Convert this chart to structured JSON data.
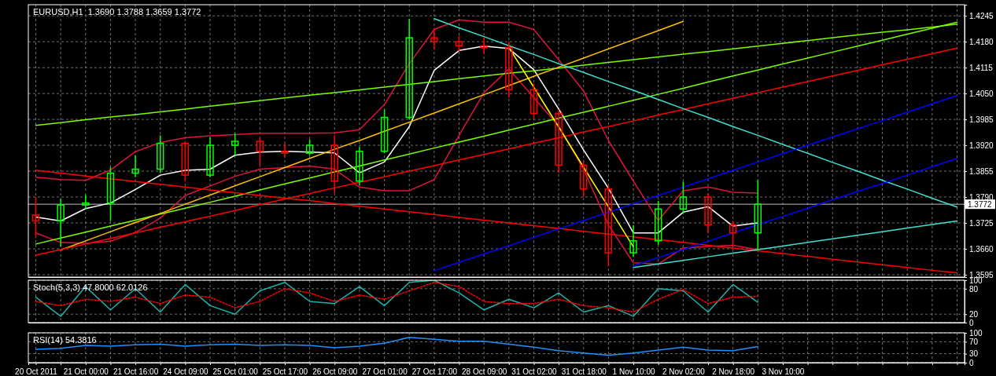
{
  "chart_data": [
    {
      "type": "candlestick",
      "title": "EURUSD,H1  1.3690 1.3788 1.3659 1.3772",
      "ylim": [
        1.3589,
        1.4273
      ],
      "yticks": [
        1.3595,
        {
          "value": 1.366,
          "label": "1.3660"
        },
        1.3725,
        {
          "value": 1.379,
          "label": "1.3790"
        },
        1.3855,
        {
          "value": 1.392,
          "label": "1.3920"
        },
        1.3985,
        {
          "value": 1.405,
          "label": "1.4050"
        },
        1.4115,
        {
          "value": 1.418,
          "label": "1.4180"
        },
        1.4245
      ],
      "grid": true,
      "tick_labels": "y",
      "categories": [
        null,
        null,
        null,
        null,
        null,
        null,
        null,
        null,
        null,
        null,
        null,
        null,
        null,
        null,
        null,
        null,
        null,
        null,
        null,
        null,
        null,
        null,
        null,
        null,
        null,
        null,
        null,
        null,
        null,
        null,
        null,
        null,
        null,
        null,
        null,
        null,
        null,
        null
      ],
      "ohlc": [
        [
          1.3745,
          1.379,
          1.369,
          1.373
        ],
        [
          1.373,
          1.3785,
          1.3666,
          1.377
        ],
        [
          1.377,
          1.3795,
          1.376,
          1.3775
        ],
        [
          1.3775,
          1.3865,
          1.373,
          1.385
        ],
        [
          1.385,
          1.3895,
          1.384,
          1.386
        ],
        [
          1.386,
          1.3945,
          1.385,
          1.3925
        ],
        [
          1.3925,
          1.393,
          1.383,
          1.3845
        ],
        [
          1.3845,
          1.394,
          1.384,
          1.392
        ],
        [
          1.392,
          1.395,
          1.3895,
          1.393
        ],
        [
          1.393,
          1.394,
          1.387,
          1.3905
        ],
        [
          1.3905,
          1.3925,
          1.389,
          1.39
        ],
        [
          1.39,
          1.3935,
          1.3895,
          1.392
        ],
        [
          1.392,
          1.3945,
          1.38,
          1.383
        ],
        [
          1.383,
          1.3915,
          1.382,
          1.3905
        ],
        [
          1.3905,
          1.401,
          1.39,
          1.399
        ],
        [
          1.399,
          1.4237,
          1.3985,
          1.419
        ],
        [
          1.419,
          1.4215,
          1.416,
          1.418
        ],
        [
          1.418,
          1.4195,
          1.4155,
          1.417
        ],
        [
          1.417,
          1.419,
          1.415,
          1.4165
        ],
        [
          1.4165,
          1.418,
          1.404,
          1.406
        ],
        [
          1.406,
          1.4075,
          1.3985,
          1.4
        ],
        [
          1.4,
          1.401,
          1.385,
          1.387
        ],
        [
          1.387,
          1.388,
          1.379,
          1.381
        ],
        [
          1.381,
          1.382,
          1.3616,
          1.365
        ],
        [
          1.365,
          1.372,
          1.364,
          1.368
        ],
        [
          1.368,
          1.378,
          1.367,
          1.376
        ],
        [
          1.376,
          1.3829,
          1.375,
          1.379
        ],
        [
          1.379,
          1.38,
          1.37,
          1.372
        ],
        [
          1.372,
          1.373,
          1.3665,
          1.37
        ],
        [
          1.37,
          1.3833,
          1.3659,
          1.3772
        ],
        null,
        null,
        null,
        null,
        null,
        null,
        null,
        null
      ],
      "colors": [
        "#ff0000",
        "#00ff00",
        "#00ff00",
        "#00ff00",
        "#00ff00",
        "#00ff00",
        "#ff0000",
        "#00ff00",
        "#00ff00",
        "#ff0000",
        "#ff0000",
        "#00ff00",
        "#ff0000",
        "#00ff00",
        "#00ff00",
        "#00ff00",
        "#ff0000",
        "#ff0000",
        "#ff0000",
        "#ff0000",
        "#ff0000",
        "#ff0000",
        "#ff0000",
        "#ff0000",
        "#00ff00",
        "#00ff00",
        "#00ff00",
        "#ff0000",
        "#ff0000",
        "#00ff00",
        null,
        null,
        null,
        null,
        null,
        null,
        null,
        null
      ],
      "ref_lines": [
        {
          "axis": "y",
          "value": 1.3772,
          "label": "1.3772",
          "color": "#c0c0c0"
        }
      ],
      "series": [
        {
          "type": "line",
          "color": "#dc143c",
          "values": [
            1.384,
            1.3834,
            1.3832,
            1.3858,
            1.3904,
            1.3927,
            1.3939,
            1.3944,
            1.3947,
            1.395,
            1.395,
            1.395,
            1.3951,
            1.3959,
            1.4022,
            1.4125,
            1.4211,
            1.4235,
            1.4229,
            1.4229,
            1.4211,
            1.4135,
            1.4056,
            1.3932,
            1.383,
            1.3731,
            1.3806,
            1.3815,
            1.3802,
            1.38,
            null,
            null,
            null,
            null,
            null,
            null,
            null,
            null
          ]
        },
        {
          "type": "line",
          "color": "#dc143c",
          "values": [
            1.37,
            1.3676,
            1.3674,
            1.3679,
            1.3701,
            1.3737,
            1.3794,
            1.3818,
            1.3842,
            1.386,
            1.3864,
            1.3868,
            1.386,
            1.3815,
            1.3806,
            1.3806,
            1.3834,
            1.3945,
            1.4052,
            1.4112,
            1.404,
            1.3968,
            1.386,
            1.372,
            1.3625,
            1.3622,
            1.3662,
            1.3666,
            1.3669,
            1.3658,
            null,
            null,
            null,
            null,
            null,
            null,
            null,
            null
          ]
        },
        {
          "type": "line",
          "color": "#ffffff",
          "values": [
            1.374,
            1.373,
            1.3761,
            1.3775,
            1.3809,
            1.3845,
            1.3857,
            1.386,
            1.3895,
            1.3903,
            1.3905,
            1.3903,
            1.3901,
            1.3851,
            1.3878,
            1.3967,
            1.4108,
            1.4158,
            1.4169,
            1.4163,
            1.411,
            1.4011,
            1.3908,
            1.3812,
            1.37,
            1.37,
            1.3752,
            1.3766,
            1.3717,
            1.3725,
            null,
            null,
            null,
            null,
            null,
            null,
            null,
            null
          ]
        },
        {
          "type": "line",
          "color": "#7cfc00",
          "values": [
            1.397,
            1.3977,
            1.3984,
            1.3991,
            1.3997,
            1.4004,
            1.4011,
            1.4018,
            1.4025,
            1.4032,
            1.4039,
            1.4046,
            1.4052,
            1.4059,
            1.4066,
            1.4073,
            1.408,
            1.4087,
            1.4094,
            1.4101,
            1.4107,
            1.4114,
            1.4121,
            1.4128,
            1.4135,
            1.4142,
            1.4149,
            1.4155,
            1.4162,
            1.4169,
            1.4176,
            1.4183,
            1.419,
            1.4197,
            1.4204,
            1.421,
            1.4217,
            1.4224
          ]
        },
        {
          "type": "line",
          "color": "#7cfc00",
          "values": [
            1.3672,
            1.3687,
            1.3702,
            1.3717,
            1.3732,
            1.3747,
            1.3762,
            1.3777,
            1.3792,
            1.3808,
            1.3823,
            1.3838,
            1.3853,
            1.3868,
            1.3883,
            1.3898,
            1.3913,
            1.3928,
            1.3943,
            1.3958,
            1.3973,
            1.3988,
            1.4003,
            1.4018,
            1.4033,
            1.4048,
            1.4063,
            1.4079,
            1.4094,
            1.4109,
            1.4124,
            1.4139,
            1.4154,
            1.4169,
            1.4184,
            1.4199,
            1.4214,
            1.4229
          ]
        },
        {
          "type": "line",
          "color": "#ffc000",
          "values": [
            null,
            1.3657,
            1.368,
            1.3703,
            1.3726,
            1.3749,
            1.3772,
            1.3795,
            1.3818,
            1.3841,
            1.3864,
            1.3887,
            1.391,
            1.3932,
            1.3955,
            1.3978,
            1.4001,
            1.4024,
            1.4047,
            1.407,
            1.4093,
            1.4116,
            1.4139,
            1.4162,
            1.4185,
            1.4208,
            1.4231,
            null,
            null,
            null,
            null,
            null,
            null,
            null,
            null,
            null,
            null,
            null
          ]
        },
        {
          "type": "line",
          "color": "#ff0000",
          "values": [
            1.3644,
            1.3658,
            1.3672,
            1.3686,
            1.37,
            1.3714,
            1.3728,
            1.3742,
            1.3756,
            1.3771,
            1.3785,
            1.3799,
            1.3813,
            1.3827,
            1.3841,
            1.3855,
            1.3869,
            1.3883,
            1.3897,
            1.3911,
            1.3925,
            1.3939,
            1.3953,
            1.3967,
            1.3981,
            1.3996,
            1.401,
            1.4024,
            1.4038,
            1.4052,
            1.4066,
            1.408,
            1.4094,
            1.4108,
            1.4122,
            1.4136,
            1.415,
            1.4164
          ]
        },
        {
          "type": "line",
          "color": "#ff0000",
          "values": [
            1.3857,
            1.385,
            1.3843,
            1.3836,
            1.3829,
            1.3822,
            1.3815,
            1.3808,
            1.3801,
            1.3794,
            1.3787,
            1.3781,
            1.3774,
            1.3767,
            1.376,
            1.3753,
            1.3746,
            1.3739,
            1.3732,
            1.3725,
            1.3718,
            1.3711,
            1.3704,
            1.3697,
            1.369,
            1.3683,
            1.3676,
            1.3669,
            1.3662,
            1.3655,
            1.3648,
            1.3641,
            1.3634,
            1.3627,
            1.362,
            1.3613,
            1.3606,
            1.36
          ]
        },
        {
          "type": "line",
          "color": "#40e0d0",
          "values": [
            null,
            null,
            null,
            null,
            null,
            null,
            null,
            null,
            null,
            null,
            null,
            null,
            null,
            null,
            null,
            null,
            1.4238,
            1.4215,
            1.4193,
            1.417,
            1.4148,
            1.4125,
            1.4103,
            1.408,
            1.4058,
            1.4035,
            1.4012,
            1.399,
            1.3967,
            1.3945,
            1.3922,
            1.39,
            1.3877,
            1.3855,
            1.3832,
            1.381,
            1.3787,
            1.3765
          ]
        },
        {
          "type": "line",
          "color": "#40e0d0",
          "values": [
            null,
            null,
            null,
            null,
            null,
            null,
            null,
            null,
            null,
            null,
            null,
            null,
            null,
            null,
            null,
            null,
            null,
            null,
            null,
            null,
            null,
            null,
            null,
            null,
            1.3613,
            1.3622,
            1.3631,
            1.364,
            1.3649,
            1.3658,
            1.3667,
            1.3676,
            1.3685,
            1.3694,
            1.3703,
            1.3712,
            1.3721,
            1.373
          ]
        },
        {
          "type": "line",
          "color": "#ffff00",
          "values": [
            null,
            null,
            null,
            null,
            null,
            null,
            null,
            null,
            null,
            null,
            null,
            null,
            null,
            null,
            null,
            null,
            null,
            null,
            null,
            1.4166,
            1.4066,
            1.3966,
            1.3865,
            1.3765,
            1.3665,
            null,
            null,
            null,
            null,
            null,
            null,
            null,
            null,
            null,
            null,
            null,
            null,
            null
          ]
        },
        {
          "type": "line",
          "color": "#0000ff",
          "values": [
            null,
            null,
            null,
            null,
            null,
            null,
            null,
            null,
            null,
            null,
            null,
            null,
            null,
            null,
            null,
            null,
            1.3605,
            1.3626,
            1.3647,
            1.3668,
            1.3689,
            1.371,
            1.3731,
            1.3752,
            1.3773,
            1.3794,
            1.3815,
            1.3836,
            1.3857,
            1.3878,
            1.3899,
            1.392,
            1.3941,
            1.3961,
            1.3982,
            1.4003,
            1.4024,
            1.4045
          ]
        },
        {
          "type": "line",
          "color": "#0000ff",
          "values": [
            null,
            null,
            null,
            null,
            null,
            null,
            null,
            null,
            null,
            null,
            null,
            null,
            null,
            null,
            null,
            null,
            null,
            null,
            null,
            null,
            null,
            null,
            null,
            null,
            1.3617,
            1.3638,
            1.3658,
            1.3679,
            1.37,
            1.3721,
            1.3741,
            1.3762,
            1.3783,
            1.3804,
            1.3824,
            1.3845,
            1.3866,
            1.3887
          ]
        }
      ]
    },
    {
      "type": "line",
      "title": "Stoch(5,3,3) 47.8000 62.0126",
      "ylim": [
        0,
        100
      ],
      "yticks": [
        0,
        20,
        80,
        100
      ],
      "grid": true,
      "tick_labels": "y",
      "categories": [
        null,
        null,
        null,
        null,
        null,
        null,
        null,
        null,
        null,
        null,
        null,
        null,
        null,
        null,
        null,
        null,
        null,
        null,
        null,
        null,
        null,
        null,
        null,
        null,
        null,
        null,
        null,
        null,
        null,
        null,
        null,
        null,
        null,
        null,
        null,
        null,
        null,
        null
      ],
      "series": [
        {
          "color": "#20b2aa",
          "line_style": "solid",
          "values": [
            60,
            15,
            85,
            30,
            80,
            25,
            90,
            40,
            20,
            75,
            95,
            50,
            45,
            85,
            40,
            95,
            100,
            70,
            30,
            55,
            35,
            70,
            25,
            40,
            15,
            80,
            75,
            25,
            90,
            48,
            null,
            null,
            null,
            null,
            null,
            null,
            null,
            null
          ]
        },
        {
          "color": "#ff0000",
          "line_style": "dotted",
          "values": [
            50,
            40,
            55,
            50,
            60,
            45,
            65,
            60,
            35,
            50,
            80,
            70,
            50,
            65,
            55,
            75,
            95,
            85,
            50,
            45,
            45,
            55,
            40,
            35,
            25,
            55,
            78,
            45,
            60,
            62,
            null,
            null,
            null,
            null,
            null,
            null,
            null,
            null
          ]
        }
      ]
    },
    {
      "type": "line",
      "title": "RSI(14) 54.3816",
      "ylim": [
        0,
        100
      ],
      "yticks": [
        0,
        30,
        70,
        100
      ],
      "grid": true,
      "categories": [
        "20 Oct 2011",
        null,
        "21 Oct 00:00",
        null,
        "21 Oct 16:00",
        null,
        "24 Oct 09:00",
        null,
        "25 Oct 01:00",
        null,
        "25 Oct 17:00",
        null,
        "26 Oct 09:00",
        null,
        "27 Oct 01:00",
        null,
        "27 Oct 17:00",
        null,
        "28 Oct 09:00",
        null,
        "31 Oct 02:00",
        null,
        "31 Oct 18:00",
        null,
        "1 Nov 10:00",
        null,
        "2 Nov 02:00",
        null,
        "2 Nov 18:00",
        null,
        "3 Nov 10:00",
        null,
        null,
        null,
        null,
        null,
        null,
        null
      ],
      "series": [
        {
          "color": "#1e90ff",
          "values": [
            45,
            48,
            58,
            55,
            60,
            62,
            55,
            60,
            62,
            58,
            60,
            58,
            50,
            55,
            65,
            85,
            78,
            72,
            72,
            62,
            52,
            40,
            32,
            25,
            32,
            42,
            52,
            42,
            40,
            54,
            null,
            null,
            null,
            null,
            null,
            null,
            null,
            null
          ]
        }
      ]
    }
  ]
}
